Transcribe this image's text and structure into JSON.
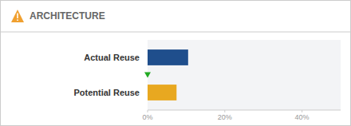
{
  "chart_data": {
    "type": "bar",
    "orientation": "horizontal",
    "title": "ARCHITECTURE",
    "categories": [
      "Actual Reuse",
      "Potential Reuse"
    ],
    "values": [
      10.5,
      7.5
    ],
    "colors": [
      "#1F4E8C",
      "#E8A820"
    ],
    "marker_value": 0.0,
    "marker_color": "#22AA22",
    "xlim": [
      0,
      50
    ],
    "xticks": [
      {
        "value": 0,
        "label": "0%"
      },
      {
        "value": 20,
        "label": "20%"
      },
      {
        "value": 40,
        "label": "40%"
      }
    ],
    "grid": false
  }
}
